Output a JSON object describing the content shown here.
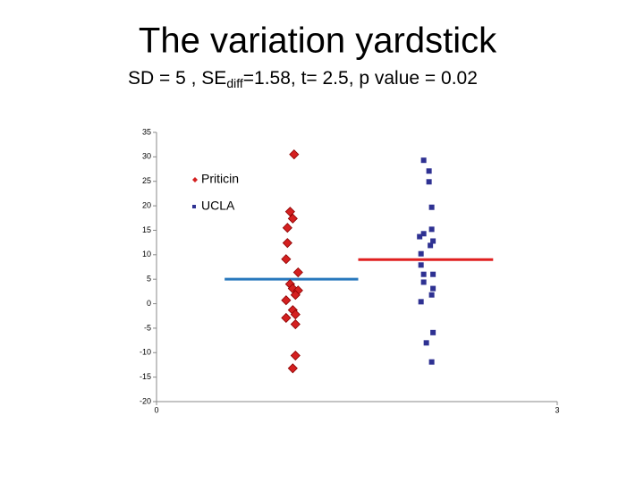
{
  "title": "The variation yardstick",
  "subtitle_parts": [
    "SD = 5",
    " , SE",
    "diff",
    "=1.58,  t= 2.5, p value = 0.02"
  ],
  "chart_data": {
    "type": "scatter",
    "xlim": [
      0,
      3
    ],
    "xticks": [
      0,
      3
    ],
    "ylim": [
      -20,
      35
    ],
    "yticks": [
      -20,
      -15,
      -10,
      -5,
      0,
      5,
      10,
      15,
      20,
      25,
      30,
      35
    ],
    "series": [
      {
        "name": "Priticin",
        "color": "#d42020",
        "marker": "diamond",
        "x": [
          1.03,
          1.0,
          1.02,
          0.98,
          0.98,
          0.97,
          1.06,
          1.0,
          1.02,
          1.06,
          1.04,
          0.97,
          1.02,
          1.04,
          0.97,
          1.04,
          1.04,
          1.02
        ],
        "values": [
          30.5,
          18.8,
          17.4,
          15.5,
          12.4,
          9.1,
          6.4,
          4.0,
          3.1,
          2.7,
          1.8,
          0.7,
          -1.3,
          -2.2,
          -2.9,
          -4.2,
          -10.6,
          -13.2
        ]
      },
      {
        "name": "UCLA",
        "color": "#2e3192",
        "marker": "square",
        "x": [
          2.0,
          2.04,
          2.04,
          2.06,
          2.06,
          2.0,
          1.97,
          2.07,
          2.05,
          1.98,
          1.98,
          2.0,
          2.07,
          2.0,
          2.07,
          2.06,
          1.98,
          2.07,
          2.02,
          2.06
        ],
        "values": [
          29.3,
          27.1,
          24.9,
          19.7,
          15.2,
          14.3,
          13.7,
          12.8,
          11.9,
          10.2,
          7.9,
          6.0,
          6.0,
          4.4,
          3.1,
          1.8,
          0.4,
          -5.9,
          -8.0,
          -11.9
        ]
      }
    ],
    "mean_lines": [
      {
        "color": "#2878bd",
        "value": 5,
        "x": [
          0.51,
          1.51
        ]
      },
      {
        "color": "#e02020",
        "value": 9,
        "x": [
          1.51,
          2.52
        ]
      }
    ]
  }
}
